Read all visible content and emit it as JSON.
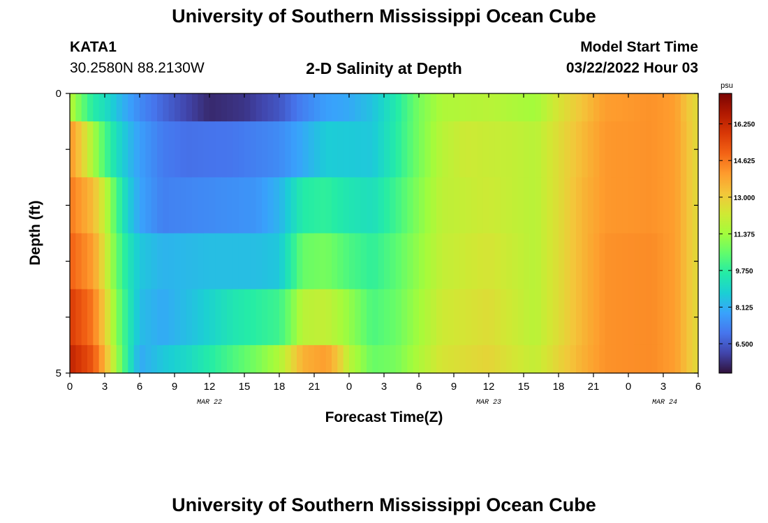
{
  "header": {
    "title": "University of Southern Mississippi Ocean Cube",
    "station": "KATA1",
    "coords": "30.2580N  88.2130W",
    "plot_title": "2-D Salinity at Depth",
    "model_start_label": "Model Start Time",
    "model_start_value": "03/22/2022 Hour 03"
  },
  "footer": {
    "title": "University of Southern Mississippi Ocean Cube"
  },
  "colorbar": {
    "unit": "psu",
    "min": 5.2,
    "max": 17.6,
    "labels": [
      "16.250",
      "14.625",
      "13.000",
      "11.375",
      "9.750",
      "8.125",
      "6.500"
    ],
    "label_values": [
      16.25,
      14.625,
      13.0,
      11.375,
      9.75,
      8.125,
      6.5
    ],
    "stops": [
      "#30123b",
      "#4145ab",
      "#4675ed",
      "#39a2fc",
      "#1bcfd4",
      "#24eca6",
      "#61fc6c",
      "#a4fc3b",
      "#d1e834",
      "#f3c63a",
      "#fe9b2d",
      "#f36315",
      "#d93806",
      "#b11901",
      "#7a0403"
    ]
  },
  "chart_data": {
    "type": "heatmap",
    "xlabel": "Forecast Time(Z)",
    "ylabel": "Depth (ft)",
    "x_tick_labels": [
      "0",
      "3",
      "6",
      "9",
      "12",
      "15",
      "18",
      "21",
      "0",
      "3",
      "6",
      "9",
      "12",
      "15",
      "18",
      "21",
      "0",
      "3",
      "6"
    ],
    "x_range_hours": [
      0,
      54
    ],
    "day_labels": [
      {
        "text": "MAR 22",
        "hour": 12
      },
      {
        "text": "MAR 23",
        "hour": 36
      },
      {
        "text": "MAR 24",
        "hour": 60
      }
    ],
    "y_tick_labels": [
      "0",
      "5"
    ],
    "ylim": [
      0,
      5
    ],
    "depth_bins": 5,
    "series": [
      {
        "depth_band": 0,
        "values": [
          {
            "h": 0,
            "v": 11.8
          },
          {
            "h": 1,
            "v": 10.6
          },
          {
            "h": 2,
            "v": 9.6
          },
          {
            "h": 3,
            "v": 9.2
          },
          {
            "h": 4,
            "v": 8.5
          },
          {
            "h": 5,
            "v": 7.9
          },
          {
            "h": 6,
            "v": 7.4
          },
          {
            "h": 8,
            "v": 6.7
          },
          {
            "h": 10,
            "v": 6.1
          },
          {
            "h": 12,
            "v": 5.6
          },
          {
            "h": 15,
            "v": 5.8
          },
          {
            "h": 18,
            "v": 6.4
          },
          {
            "h": 20,
            "v": 7.2
          },
          {
            "h": 22,
            "v": 7.8
          },
          {
            "h": 24,
            "v": 8.0
          },
          {
            "h": 26,
            "v": 8.5
          },
          {
            "h": 28,
            "v": 9.5
          },
          {
            "h": 30,
            "v": 10.8
          },
          {
            "h": 32,
            "v": 11.6
          },
          {
            "h": 36,
            "v": 11.8
          },
          {
            "h": 40,
            "v": 11.4
          },
          {
            "h": 42,
            "v": 12.4
          },
          {
            "h": 44,
            "v": 13.2
          },
          {
            "h": 46,
            "v": 14.0
          },
          {
            "h": 50,
            "v": 14.2
          },
          {
            "h": 52,
            "v": 14.0
          },
          {
            "h": 53,
            "v": 13.2
          },
          {
            "h": 54,
            "v": 12.6
          }
        ]
      },
      {
        "depth_band": 1,
        "values": [
          {
            "h": 0,
            "v": 14.2
          },
          {
            "h": 1,
            "v": 13.0
          },
          {
            "h": 2,
            "v": 11.5
          },
          {
            "h": 3,
            "v": 10.2
          },
          {
            "h": 4,
            "v": 9.2
          },
          {
            "h": 5,
            "v": 8.4
          },
          {
            "h": 6,
            "v": 7.8
          },
          {
            "h": 8,
            "v": 7.1
          },
          {
            "h": 10,
            "v": 6.9
          },
          {
            "h": 14,
            "v": 7.0
          },
          {
            "h": 18,
            "v": 7.4
          },
          {
            "h": 20,
            "v": 8.0
          },
          {
            "h": 22,
            "v": 8.7
          },
          {
            "h": 26,
            "v": 8.6
          },
          {
            "h": 28,
            "v": 9.6
          },
          {
            "h": 30,
            "v": 10.8
          },
          {
            "h": 32,
            "v": 11.8
          },
          {
            "h": 34,
            "v": 12.2
          },
          {
            "h": 38,
            "v": 12.0
          },
          {
            "h": 40,
            "v": 11.8
          },
          {
            "h": 42,
            "v": 12.6
          },
          {
            "h": 44,
            "v": 13.4
          },
          {
            "h": 46,
            "v": 14.1
          },
          {
            "h": 50,
            "v": 14.2
          },
          {
            "h": 52,
            "v": 14.0
          },
          {
            "h": 53,
            "v": 13.3
          },
          {
            "h": 54,
            "v": 12.6
          }
        ]
      },
      {
        "depth_band": 2,
        "values": [
          {
            "h": 0,
            "v": 14.6
          },
          {
            "h": 2,
            "v": 13.4
          },
          {
            "h": 3,
            "v": 12.0
          },
          {
            "h": 4,
            "v": 10.2
          },
          {
            "h": 5,
            "v": 8.8
          },
          {
            "h": 6,
            "v": 7.9
          },
          {
            "h": 8,
            "v": 7.2
          },
          {
            "h": 12,
            "v": 7.4
          },
          {
            "h": 16,
            "v": 7.6
          },
          {
            "h": 18,
            "v": 8.2
          },
          {
            "h": 20,
            "v": 9.6
          },
          {
            "h": 22,
            "v": 9.8
          },
          {
            "h": 24,
            "v": 9.4
          },
          {
            "h": 26,
            "v": 9.2
          },
          {
            "h": 28,
            "v": 10.0
          },
          {
            "h": 30,
            "v": 11.0
          },
          {
            "h": 32,
            "v": 11.9
          },
          {
            "h": 36,
            "v": 12.2
          },
          {
            "h": 40,
            "v": 11.8
          },
          {
            "h": 42,
            "v": 12.6
          },
          {
            "h": 44,
            "v": 13.5
          },
          {
            "h": 46,
            "v": 14.1
          },
          {
            "h": 50,
            "v": 14.2
          },
          {
            "h": 52,
            "v": 14.0
          },
          {
            "h": 53,
            "v": 13.3
          },
          {
            "h": 54,
            "v": 12.6
          }
        ]
      },
      {
        "depth_band": 3,
        "values": [
          {
            "h": 0,
            "v": 15.0
          },
          {
            "h": 2,
            "v": 14.0
          },
          {
            "h": 3,
            "v": 12.4
          },
          {
            "h": 4,
            "v": 10.6
          },
          {
            "h": 5,
            "v": 9.4
          },
          {
            "h": 6,
            "v": 8.6
          },
          {
            "h": 8,
            "v": 8.2
          },
          {
            "h": 12,
            "v": 8.4
          },
          {
            "h": 16,
            "v": 8.4
          },
          {
            "h": 18,
            "v": 8.6
          },
          {
            "h": 19,
            "v": 9.6
          },
          {
            "h": 20,
            "v": 10.6
          },
          {
            "h": 22,
            "v": 10.8
          },
          {
            "h": 24,
            "v": 10.2
          },
          {
            "h": 26,
            "v": 9.8
          },
          {
            "h": 28,
            "v": 10.4
          },
          {
            "h": 30,
            "v": 11.2
          },
          {
            "h": 32,
            "v": 12.0
          },
          {
            "h": 36,
            "v": 12.4
          },
          {
            "h": 40,
            "v": 11.8
          },
          {
            "h": 42,
            "v": 12.6
          },
          {
            "h": 44,
            "v": 13.5
          },
          {
            "h": 46,
            "v": 14.2
          },
          {
            "h": 50,
            "v": 14.3
          },
          {
            "h": 52,
            "v": 14.0
          },
          {
            "h": 53,
            "v": 13.3
          },
          {
            "h": 54,
            "v": 12.6
          }
        ]
      },
      {
        "depth_band": 4,
        "values": [
          {
            "h": 0,
            "v": 15.8
          },
          {
            "h": 2,
            "v": 14.6
          },
          {
            "h": 3,
            "v": 13.0
          },
          {
            "h": 4,
            "v": 11.0
          },
          {
            "h": 5,
            "v": 9.6
          },
          {
            "h": 6,
            "v": 8.4
          },
          {
            "h": 8,
            "v": 8.0
          },
          {
            "h": 11,
            "v": 8.6
          },
          {
            "h": 14,
            "v": 9.4
          },
          {
            "h": 18,
            "v": 10.0
          },
          {
            "h": 19,
            "v": 10.8
          },
          {
            "h": 20,
            "v": 11.8
          },
          {
            "h": 22,
            "v": 12.0
          },
          {
            "h": 24,
            "v": 11.2
          },
          {
            "h": 26,
            "v": 10.2
          },
          {
            "h": 28,
            "v": 10.6
          },
          {
            "h": 30,
            "v": 11.4
          },
          {
            "h": 32,
            "v": 12.2
          },
          {
            "h": 36,
            "v": 12.6
          },
          {
            "h": 40,
            "v": 11.8
          },
          {
            "h": 42,
            "v": 12.6
          },
          {
            "h": 44,
            "v": 13.5
          },
          {
            "h": 46,
            "v": 14.2
          },
          {
            "h": 50,
            "v": 14.3
          },
          {
            "h": 52,
            "v": 14.0
          },
          {
            "h": 53,
            "v": 13.3
          },
          {
            "h": 54,
            "v": 12.6
          }
        ]
      },
      {
        "depth_band": 5,
        "values": [
          {
            "h": 0,
            "v": 16.4
          },
          {
            "h": 2,
            "v": 15.2
          },
          {
            "h": 3,
            "v": 13.6
          },
          {
            "h": 4,
            "v": 11.4
          },
          {
            "h": 5,
            "v": 9.6
          },
          {
            "h": 6,
            "v": 8.0
          },
          {
            "h": 8,
            "v": 8.6
          },
          {
            "h": 10,
            "v": 9.0
          },
          {
            "h": 12,
            "v": 9.6
          },
          {
            "h": 14,
            "v": 10.2
          },
          {
            "h": 16,
            "v": 10.8
          },
          {
            "h": 18,
            "v": 11.6
          },
          {
            "h": 19,
            "v": 12.6
          },
          {
            "h": 20,
            "v": 13.6
          },
          {
            "h": 22,
            "v": 14.0
          },
          {
            "h": 23,
            "v": 13.2
          },
          {
            "h": 24,
            "v": 11.8
          },
          {
            "h": 26,
            "v": 10.6
          },
          {
            "h": 28,
            "v": 10.8
          },
          {
            "h": 30,
            "v": 11.6
          },
          {
            "h": 32,
            "v": 12.4
          },
          {
            "h": 36,
            "v": 12.8
          },
          {
            "h": 40,
            "v": 12.0
          },
          {
            "h": 42,
            "v": 12.8
          },
          {
            "h": 44,
            "v": 13.6
          },
          {
            "h": 46,
            "v": 14.2
          },
          {
            "h": 50,
            "v": 14.3
          },
          {
            "h": 52,
            "v": 14.0
          },
          {
            "h": 53,
            "v": 13.3
          },
          {
            "h": 54,
            "v": 12.6
          }
        ]
      }
    ]
  }
}
